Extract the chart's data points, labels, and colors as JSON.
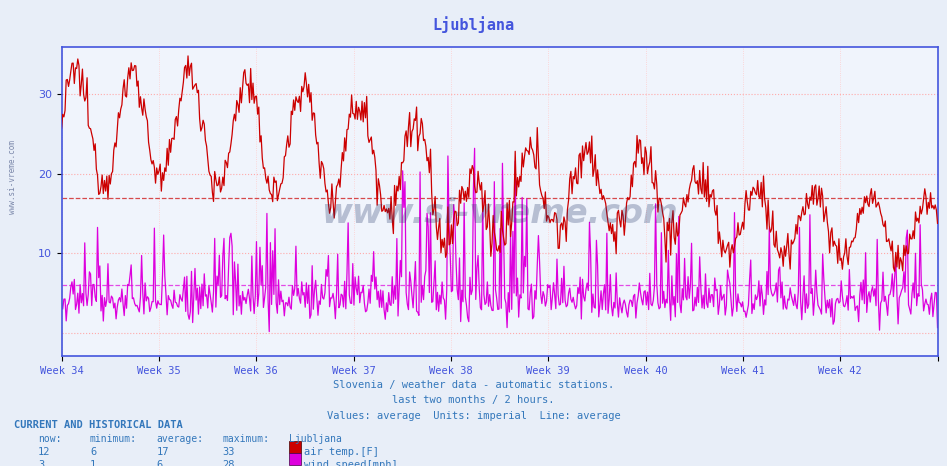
{
  "title": "Ljubljana",
  "title_color": "#4455dd",
  "bg_color": "#e8eef8",
  "plot_bg_color": "#f0f4fc",
  "grid_color_h": "#ffaaaa",
  "grid_color_v": "#ffcccc",
  "axis_color": "#4455dd",
  "subtitle_lines": [
    "Slovenia / weather data - automatic stations.",
    "last two months / 2 hours.",
    "Values: average  Units: imperial  Line: average"
  ],
  "subtitle_color": "#3377bb",
  "footer_title": "CURRENT AND HISTORICAL DATA",
  "footer_color": "#3377bb",
  "footer_headers": [
    "now:",
    "minimum:",
    "average:",
    "maximum:",
    "Ljubljana"
  ],
  "footer_row1": [
    "12",
    "6",
    "17",
    "33"
  ],
  "footer_row1_label": "air temp.[F]",
  "footer_row1_color": "#cc0000",
  "footer_row2": [
    "3",
    "1",
    "6",
    "28"
  ],
  "footer_row2_label": "wind speed[mph]",
  "footer_row2_color": "#dd00dd",
  "xlabels": [
    "Week 34",
    "Week 35",
    "Week 36",
    "Week 37",
    "Week 38",
    "Week 39",
    "Week 40",
    "Week 41",
    "Week 42"
  ],
  "yticks": [
    10,
    20,
    30
  ],
  "ylim": [
    -3,
    36
  ],
  "temp_avg": 17,
  "wind_avg": 6,
  "temp_color": "#cc0000",
  "wind_color": "#dd00dd",
  "line_width": 0.9,
  "n_weeks": 9,
  "points_per_week": 84
}
